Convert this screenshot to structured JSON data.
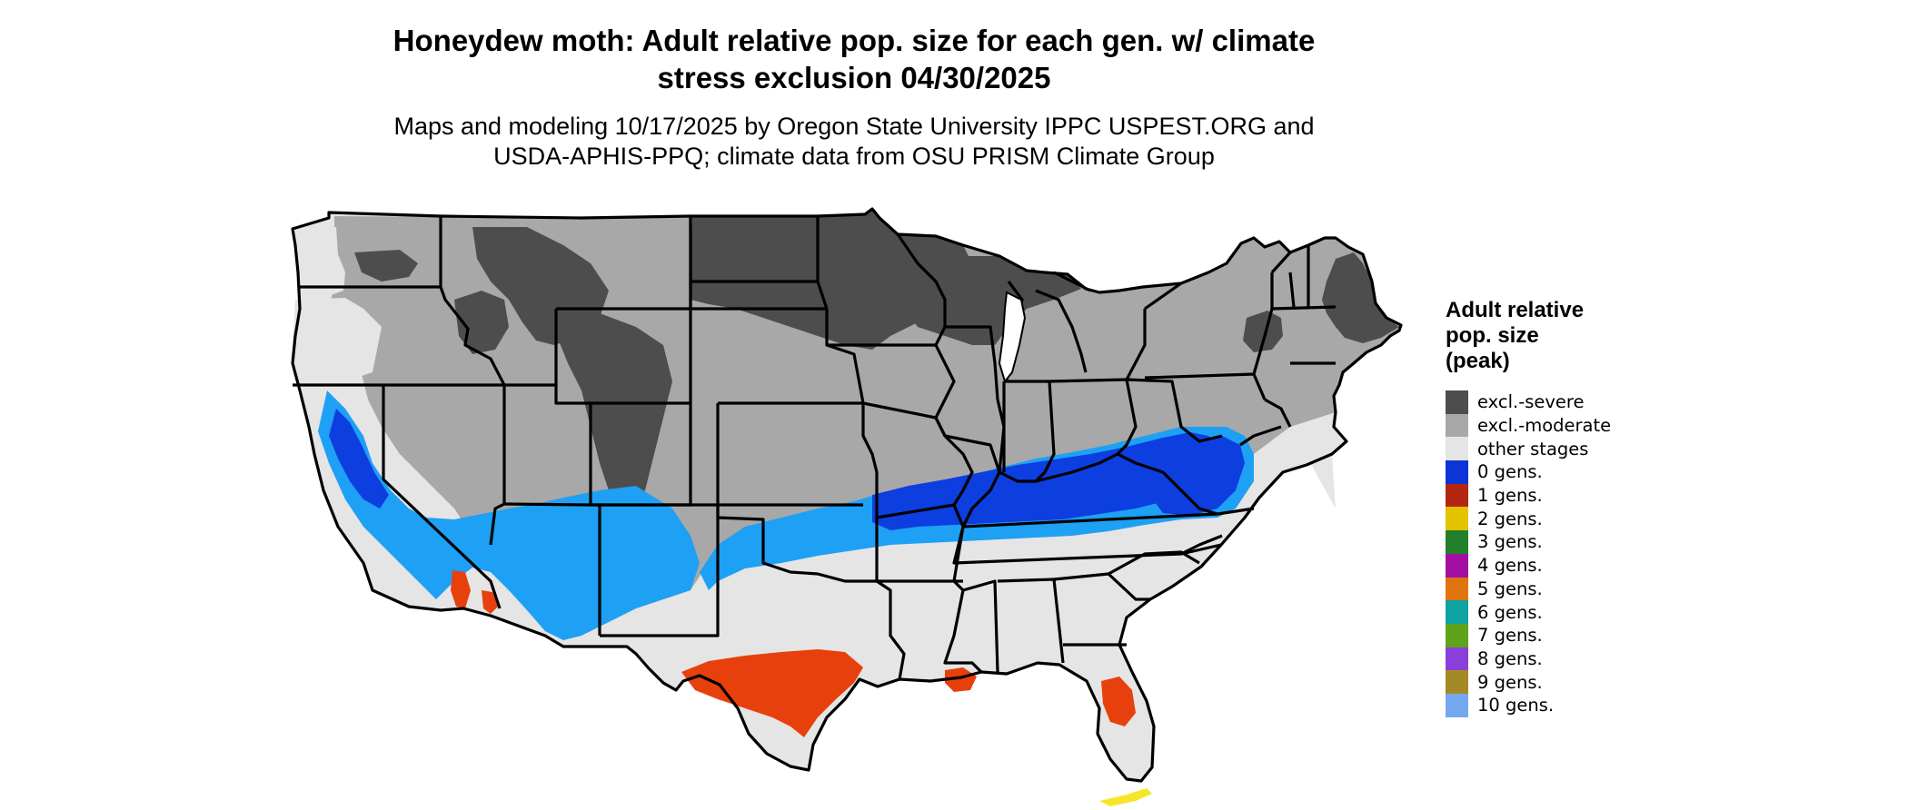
{
  "title_line1": "Honeydew moth: Adult relative pop. size for each gen. w/ climate",
  "title_line2": "stress exclusion 04/30/2025",
  "subtitle_line1": "Maps and modeling 10/17/2025 by Oregon State University IPPC USPEST.ORG and",
  "subtitle_line2": "USDA-APHIS-PPQ; climate data from OSU PRISM Climate Group",
  "legend": {
    "title_line1": "Adult relative",
    "title_line2": "pop. size",
    "title_line3": "(peak)",
    "items": [
      {
        "label": "excl.-severe",
        "color": "#4d4d4d"
      },
      {
        "label": "excl.-moderate",
        "color": "#a8a8a8"
      },
      {
        "label": "other stages",
        "color": "#e5e5e5"
      },
      {
        "label": "0 gens.",
        "color": "#0d35d6"
      },
      {
        "label": "1 gens.",
        "color": "#b3260f"
      },
      {
        "label": "2 gens.",
        "color": "#e3c200"
      },
      {
        "label": "3 gens.",
        "color": "#22802a"
      },
      {
        "label": "4 gens.",
        "color": "#a30fa3"
      },
      {
        "label": "5 gens.",
        "color": "#e0740e"
      },
      {
        "label": "6 gens.",
        "color": "#0fa3a3"
      },
      {
        "label": "7 gens.",
        "color": "#5fa31a"
      },
      {
        "label": "8 gens.",
        "color": "#8a3fdb"
      },
      {
        "label": "9 gens.",
        "color": "#a38a26"
      },
      {
        "label": "10 gens.",
        "color": "#74a8f0"
      }
    ]
  },
  "map_colors": {
    "severe": "#4d4d4d",
    "moderate": "#a8a8a8",
    "other_stages": "#e5e5e5",
    "zero_gens_dark": "#0d3fe0",
    "zero_gens_light": "#1ea0f5",
    "one_gen": "#e8400c",
    "two_gens": "#f5e62a",
    "state_lines": "#000000"
  }
}
